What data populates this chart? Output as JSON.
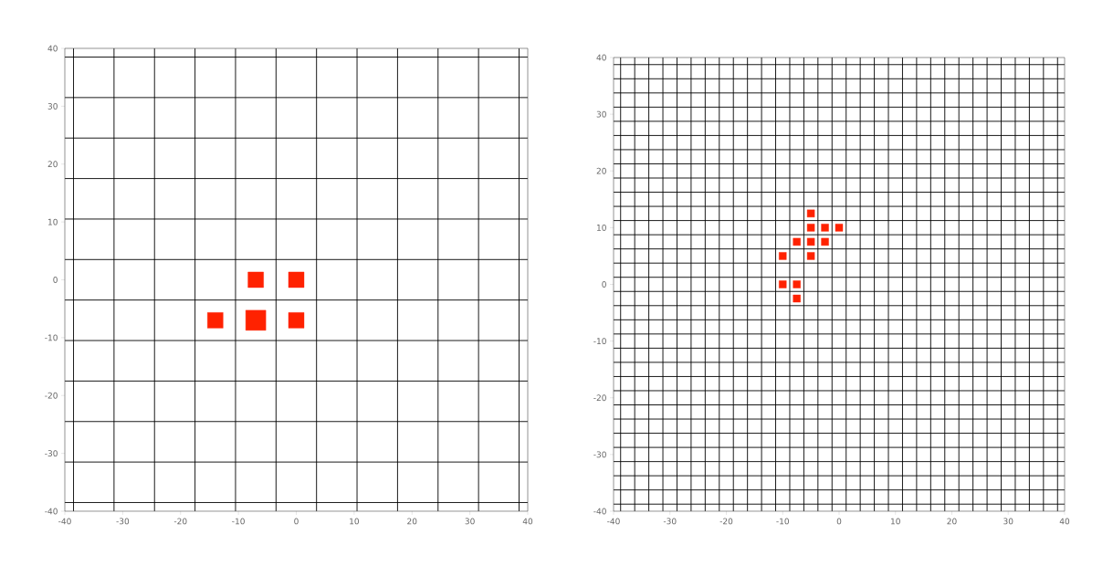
{
  "chart_data": [
    {
      "type": "bubble",
      "marker": "square",
      "grid": true,
      "color": "#ff2200",
      "x": [
        -7,
        0,
        -14,
        -7,
        0
      ],
      "values": [
        0,
        0,
        -7,
        -7,
        -7
      ],
      "sizes": [
        0.6,
        0.6,
        0.6,
        1,
        0.6
      ],
      "xlim": [
        -40,
        40
      ],
      "ylim": [
        -40,
        40
      ],
      "xticks": [
        -40,
        -30,
        -20,
        -10,
        0,
        10,
        20,
        30,
        40,
        {
          "value": -38.5,
          "label": null
        },
        {
          "value": -31.5,
          "label": null
        },
        {
          "value": -24.5,
          "label": null
        },
        {
          "value": -17.5,
          "label": null
        },
        {
          "value": -10.5,
          "label": null
        },
        {
          "value": -3.5,
          "label": null
        },
        {
          "value": 3.5,
          "label": null
        },
        {
          "value": 10.5,
          "label": null
        },
        {
          "value": 17.5,
          "label": null
        },
        {
          "value": 24.5,
          "label": null
        },
        {
          "value": 31.5,
          "label": null
        },
        {
          "value": 38.5,
          "label": null
        }
      ],
      "yticks": [
        -40,
        -30,
        -20,
        -10,
        0,
        10,
        20,
        30,
        40,
        {
          "value": -38.5,
          "label": null
        },
        {
          "value": -31.5,
          "label": null
        },
        {
          "value": -24.5,
          "label": null
        },
        {
          "value": -17.5,
          "label": null
        },
        {
          "value": -10.5,
          "label": null
        },
        {
          "value": -3.5,
          "label": null
        },
        {
          "value": 3.5,
          "label": null
        },
        {
          "value": 10.5,
          "label": null
        },
        {
          "value": 17.5,
          "label": null
        },
        {
          "value": 24.5,
          "label": null
        },
        {
          "value": 31.5,
          "label": null
        },
        {
          "value": 38.5,
          "label": null
        }
      ]
    },
    {
      "type": "scatter",
      "marker": "square",
      "grid": true,
      "color": "#ff2200",
      "x": [
        -5,
        -5,
        -2.5,
        0,
        -7.5,
        -5,
        -2.5,
        -10,
        -5,
        -10,
        -7.5,
        -7.5
      ],
      "values": [
        12.5,
        10,
        10,
        10,
        7.5,
        7.5,
        7.5,
        5,
        5,
        0,
        0,
        -2.5
      ],
      "xlim": [
        -40,
        40
      ],
      "ylim": [
        -40,
        40
      ],
      "xticks": [
        -40,
        -30,
        -20,
        -10,
        0,
        10,
        20,
        30,
        40,
        {
          "value": -38.75,
          "label": null
        },
        {
          "value": -36.25,
          "label": null
        },
        {
          "value": -33.75,
          "label": null
        },
        {
          "value": -31.25,
          "label": null
        },
        {
          "value": -28.75,
          "label": null
        },
        {
          "value": -26.25,
          "label": null
        },
        {
          "value": -23.75,
          "label": null
        },
        {
          "value": -21.25,
          "label": null
        },
        {
          "value": -18.75,
          "label": null
        },
        {
          "value": -16.25,
          "label": null
        },
        {
          "value": -13.75,
          "label": null
        },
        {
          "value": -11.25,
          "label": null
        },
        {
          "value": -8.75,
          "label": null
        },
        {
          "value": -6.25,
          "label": null
        },
        {
          "value": -3.75,
          "label": null
        },
        {
          "value": -1.25,
          "label": null
        },
        {
          "value": 1.25,
          "label": null
        },
        {
          "value": 3.75,
          "label": null
        },
        {
          "value": 6.25,
          "label": null
        },
        {
          "value": 8.75,
          "label": null
        },
        {
          "value": 11.25,
          "label": null
        },
        {
          "value": 13.75,
          "label": null
        },
        {
          "value": 16.25,
          "label": null
        },
        {
          "value": 18.75,
          "label": null
        },
        {
          "value": 21.25,
          "label": null
        },
        {
          "value": 23.75,
          "label": null
        },
        {
          "value": 26.25,
          "label": null
        },
        {
          "value": 28.75,
          "label": null
        },
        {
          "value": 31.25,
          "label": null
        },
        {
          "value": 33.75,
          "label": null
        },
        {
          "value": 36.25,
          "label": null
        },
        {
          "value": 38.75,
          "label": null
        }
      ],
      "yticks": [
        -40,
        -30,
        -20,
        -10,
        0,
        10,
        20,
        30,
        40,
        {
          "value": -38.75,
          "label": null
        },
        {
          "value": -36.25,
          "label": null
        },
        {
          "value": -33.75,
          "label": null
        },
        {
          "value": -31.25,
          "label": null
        },
        {
          "value": -28.75,
          "label": null
        },
        {
          "value": -26.25,
          "label": null
        },
        {
          "value": -23.75,
          "label": null
        },
        {
          "value": -21.25,
          "label": null
        },
        {
          "value": -18.75,
          "label": null
        },
        {
          "value": -16.25,
          "label": null
        },
        {
          "value": -13.75,
          "label": null
        },
        {
          "value": -11.25,
          "label": null
        },
        {
          "value": -8.75,
          "label": null
        },
        {
          "value": -6.25,
          "label": null
        },
        {
          "value": -3.75,
          "label": null
        },
        {
          "value": -1.25,
          "label": null
        },
        {
          "value": 1.25,
          "label": null
        },
        {
          "value": 3.75,
          "label": null
        },
        {
          "value": 6.25,
          "label": null
        },
        {
          "value": 8.75,
          "label": null
        },
        {
          "value": 11.25,
          "label": null
        },
        {
          "value": 13.75,
          "label": null
        },
        {
          "value": 16.25,
          "label": null
        },
        {
          "value": 18.75,
          "label": null
        },
        {
          "value": 21.25,
          "label": null
        },
        {
          "value": 23.75,
          "label": null
        },
        {
          "value": 26.25,
          "label": null
        },
        {
          "value": 28.75,
          "label": null
        },
        {
          "value": 31.25,
          "label": null
        },
        {
          "value": 33.75,
          "label": null
        },
        {
          "value": 36.25,
          "label": null
        },
        {
          "value": 38.75,
          "label": null
        }
      ]
    }
  ]
}
